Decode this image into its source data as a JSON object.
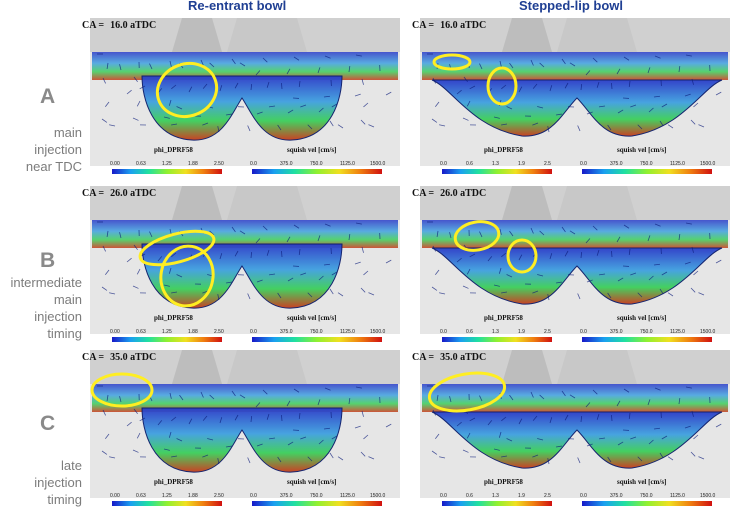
{
  "columns": {
    "left": "Re-entrant bowl",
    "right": "Stepped-lip bowl"
  },
  "rows": [
    {
      "letter": "A",
      "lines": [
        "main",
        "injection",
        "near TDC"
      ]
    },
    {
      "letter": "B",
      "lines": [
        "intermediate",
        "main",
        "injection",
        "timing"
      ]
    },
    {
      "letter": "C",
      "lines": [
        "late",
        "injection",
        "timing"
      ]
    }
  ],
  "panels": [
    {
      "ca_prefix": "CA =",
      "ca_value": "16.0 aTDC",
      "cb1_label": "phi_DPRF58",
      "cb1_ticks": [
        "0.00",
        "0.63",
        "1.25",
        "1.88",
        "2.50"
      ],
      "cb2_label": "squish vel [cm/s]",
      "cb2_ticks": [
        "0.0",
        "375.0",
        "750.0",
        "1125.0",
        "1500.0"
      ]
    },
    {
      "ca_prefix": "CA =",
      "ca_value": "16.0 aTDC",
      "cb1_label": "phi_DPRF58",
      "cb1_ticks": [
        "0.0",
        "0.6",
        "1.3",
        "1.9",
        "2.5"
      ],
      "cb2_label": "squish vel [cm/s]",
      "cb2_ticks": [
        "0.0",
        "375.0",
        "750.0",
        "1125.0",
        "1500.0"
      ]
    },
    {
      "ca_prefix": "CA =",
      "ca_value": "26.0 aTDC",
      "cb1_label": "phi_DPRF58",
      "cb1_ticks": [
        "0.00",
        "0.63",
        "1.25",
        "1.88",
        "2.50"
      ],
      "cb2_label": "squish vel [cm/s]",
      "cb2_ticks": [
        "0.0",
        "375.0",
        "750.0",
        "1125.0",
        "1500.0"
      ]
    },
    {
      "ca_prefix": "CA =",
      "ca_value": "26.0 aTDC",
      "cb1_label": "phi_DPRF58",
      "cb1_ticks": [
        "0.0",
        "0.6",
        "1.3",
        "1.9",
        "2.5"
      ],
      "cb2_label": "squish vel [cm/s]",
      "cb2_ticks": [
        "0.0",
        "375.0",
        "750.0",
        "1125.0",
        "1500.0"
      ]
    },
    {
      "ca_prefix": "CA =",
      "ca_value": "35.0 aTDC",
      "cb1_label": "phi_DPRF58",
      "cb1_ticks": [
        "0.00",
        "0.63",
        "1.25",
        "1.88",
        "2.50"
      ],
      "cb2_label": "squish vel [cm/s]",
      "cb2_ticks": [
        "0.0",
        "375.0",
        "750.0",
        "1125.0",
        "1500.0"
      ]
    },
    {
      "ca_prefix": "CA =",
      "ca_value": "35.0 aTDC",
      "cb1_label": "phi_DPRF58",
      "cb1_ticks": [
        "0.0",
        "0.6",
        "1.3",
        "1.9",
        "2.5"
      ],
      "cb2_label": "squish vel [cm/s]",
      "cb2_ticks": [
        "0.0",
        "375.0",
        "750.0",
        "1125.0",
        "1500.0"
      ]
    }
  ],
  "colors": {
    "heading": "#1f3f93",
    "swirl": "#ffee22",
    "label": "#7c7c7c"
  }
}
